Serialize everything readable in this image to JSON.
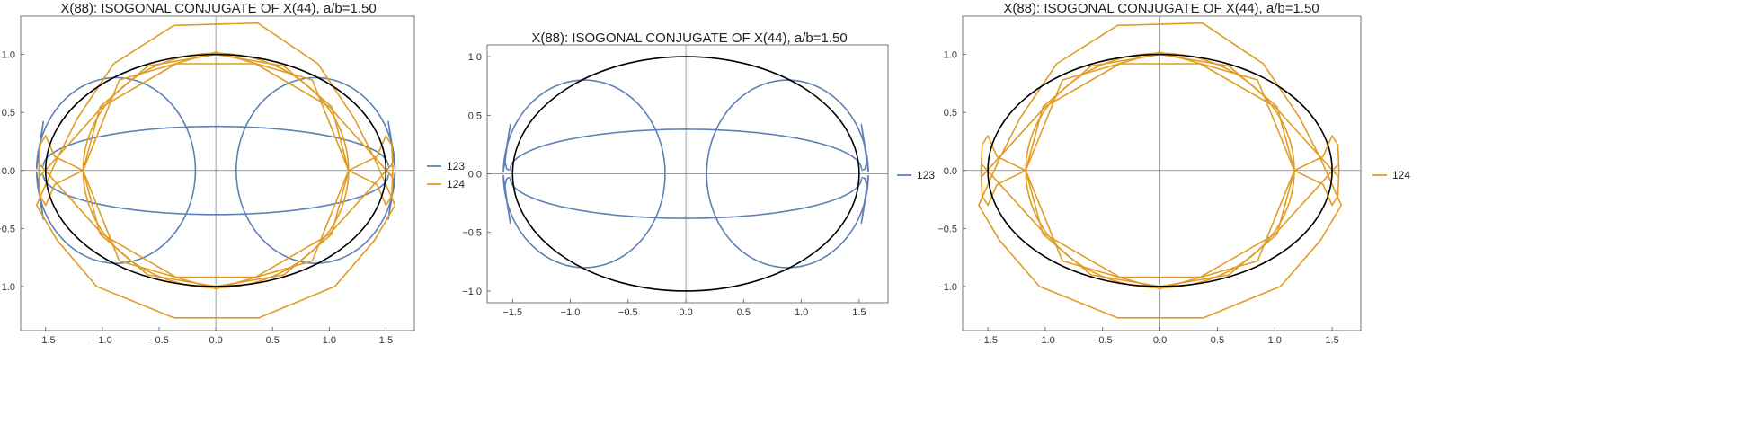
{
  "chart_data": [
    {
      "type": "line",
      "title": "X(88): ISOGONAL CONJUGATE OF X(44), a/b=1.50",
      "xlabel": "",
      "ylabel": "",
      "xlim": [
        -1.72,
        1.75
      ],
      "ylim": [
        -1.38,
        1.33
      ],
      "xticks": [
        -1.5,
        -1.0,
        -0.5,
        0.0,
        0.5,
        1.0,
        1.5
      ],
      "xtick_labels": [
        "−1.5",
        "−1.0",
        "−0.5",
        "0.0",
        "0.5",
        "1.0",
        "1.5"
      ],
      "yticks": [
        -1.0,
        -0.5,
        0.0,
        0.5,
        1.0
      ],
      "ytick_labels": [
        "−1.0",
        "−0.5",
        "0.0",
        "0.5",
        "1.0"
      ],
      "grid": false,
      "legend": "right",
      "ellipse": {
        "a": 1.5,
        "b": 1.0,
        "color": "#000000"
      },
      "series": [
        {
          "name": "123",
          "color": "#5e81b5",
          "curve": "x123"
        },
        {
          "name": "124",
          "color": "#e19c24",
          "curve": "x124"
        }
      ]
    },
    {
      "type": "line",
      "title": "X(88): ISOGONAL CONJUGATE OF X(44), a/b=1.50",
      "xlabel": "",
      "ylabel": "",
      "xlim": [
        -1.72,
        1.75
      ],
      "ylim": [
        -1.1,
        1.1
      ],
      "xticks": [
        -1.5,
        -1.0,
        -0.5,
        0.0,
        0.5,
        1.0,
        1.5
      ],
      "xtick_labels": [
        "−1.5",
        "−1.0",
        "−0.5",
        "0.0",
        "0.5",
        "1.0",
        "1.5"
      ],
      "yticks": [
        -1.0,
        -0.5,
        0.0,
        0.5,
        1.0
      ],
      "ytick_labels": [
        "−1.0",
        "−0.5",
        "0.0",
        "0.5",
        "1.0"
      ],
      "grid": false,
      "legend": "right",
      "ellipse": {
        "a": 1.5,
        "b": 1.0,
        "color": "#000000"
      },
      "series": [
        {
          "name": "123",
          "color": "#5e81b5",
          "curve": "x123"
        }
      ]
    },
    {
      "type": "line",
      "title": "X(88): ISOGONAL CONJUGATE OF X(44), a/b=1.50",
      "xlabel": "",
      "ylabel": "",
      "xlim": [
        -1.72,
        1.75
      ],
      "ylim": [
        -1.38,
        1.33
      ],
      "xticks": [
        -1.5,
        -1.0,
        -0.5,
        0.0,
        0.5,
        1.0,
        1.5
      ],
      "xtick_labels": [
        "−1.5",
        "−1.0",
        "−0.5",
        "0.0",
        "0.5",
        "1.0",
        "1.5"
      ],
      "yticks": [
        -1.0,
        -0.5,
        0.0,
        0.5,
        1.0
      ],
      "ytick_labels": [
        "−1.0",
        "−0.5",
        "0.0",
        "0.5",
        "1.0"
      ],
      "grid": false,
      "legend": "right",
      "ellipse": {
        "a": 1.5,
        "b": 1.0,
        "color": "#000000"
      },
      "series": [
        {
          "name": "124",
          "color": "#e19c24",
          "curve": "x124"
        }
      ]
    }
  ]
}
